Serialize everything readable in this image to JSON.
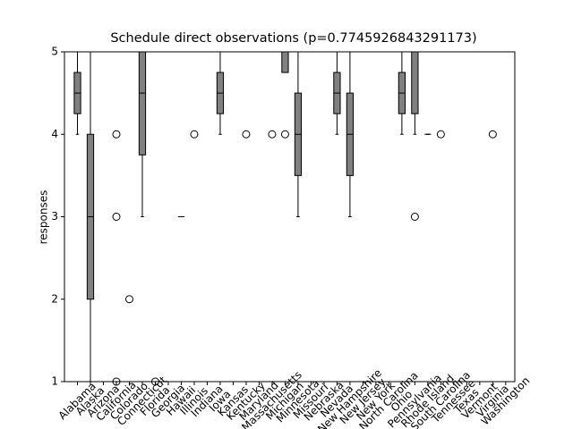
{
  "chart_data": {
    "type": "boxplot",
    "title": "Schedule direct observations (p=0.7745926843291173)",
    "y_label": "responses",
    "ylim": [
      1,
      5
    ],
    "yticks": [
      1,
      2,
      3,
      4,
      5
    ],
    "box_color": "#808080",
    "categories": [
      "Alabama",
      "Alaska",
      "Arizona",
      "California",
      "Colorado",
      "Connecticut",
      "Florida",
      "Georgia",
      "Hawaii",
      "Illinois",
      "Indiana",
      "Iowa",
      "Kansas",
      "Kentucky",
      "Maryland",
      "Massachusetts",
      "Michigan",
      "Minnesota",
      "Missouri",
      "Nebraska",
      "Nevada",
      "New Hampshire",
      "New Jersey",
      "New York",
      "North Carolina",
      "Ohio",
      "Pennsylvania",
      "Rhode Island",
      "South Carolina",
      "Tennessee",
      "Texas",
      "Vermont",
      "Virginia",
      "Washington"
    ],
    "boxes": [
      {
        "whislo": 4,
        "q1": 4.25,
        "med": 4.5,
        "q3": 4.75,
        "whishi": 5,
        "fliers": []
      },
      {
        "whislo": 1,
        "q1": 2,
        "med": 3,
        "q3": 4,
        "whishi": 5,
        "fliers": []
      },
      {
        "whislo": 5,
        "q1": 5,
        "med": 5,
        "q3": 5,
        "whishi": 5,
        "fliers": []
      },
      {
        "whislo": 5,
        "q1": 5,
        "med": 5,
        "q3": 5,
        "whishi": 5,
        "fliers": [
          4,
          3,
          1
        ]
      },
      {
        "whislo": 5,
        "q1": 5,
        "med": 5,
        "q3": 5,
        "whishi": 5,
        "fliers": [
          2
        ]
      },
      {
        "whislo": 3,
        "q1": 3.75,
        "med": 4.5,
        "q3": 5,
        "whishi": 5,
        "fliers": []
      },
      {
        "whislo": 5,
        "q1": 5,
        "med": 5,
        "q3": 5,
        "whishi": 5,
        "fliers": [
          1
        ]
      },
      {
        "whislo": 5,
        "q1": 5,
        "med": 5,
        "q3": 5,
        "whishi": 5,
        "fliers": []
      },
      {
        "whislo": 3,
        "q1": 3,
        "med": 3,
        "q3": 3,
        "whishi": 3,
        "fliers": []
      },
      {
        "whislo": 5,
        "q1": 5,
        "med": 5,
        "q3": 5,
        "whishi": 5,
        "fliers": [
          4
        ]
      },
      {
        "whislo": 5,
        "q1": 5,
        "med": 5,
        "q3": 5,
        "whishi": 5,
        "fliers": []
      },
      {
        "whislo": 4,
        "q1": 4.25,
        "med": 4.5,
        "q3": 4.75,
        "whishi": 5,
        "fliers": []
      },
      {
        "whislo": 5,
        "q1": 5,
        "med": 5,
        "q3": 5,
        "whishi": 5,
        "fliers": []
      },
      {
        "whislo": 5,
        "q1": 5,
        "med": 5,
        "q3": 5,
        "whishi": 5,
        "fliers": [
          4
        ]
      },
      {
        "whislo": 5,
        "q1": 5,
        "med": 5,
        "q3": 5,
        "whishi": 5,
        "fliers": []
      },
      {
        "whislo": 5,
        "q1": 5,
        "med": 5,
        "q3": 5,
        "whishi": 5,
        "fliers": [
          4
        ]
      },
      {
        "whislo": 4.75,
        "q1": 4.75,
        "med": 5,
        "q3": 5,
        "whishi": 5,
        "fliers": [
          4
        ]
      },
      {
        "whislo": 3,
        "q1": 3.5,
        "med": 4,
        "q3": 4.5,
        "whishi": 5,
        "fliers": []
      },
      {
        "whislo": 5,
        "q1": 5,
        "med": 5,
        "q3": 5,
        "whishi": 5,
        "fliers": []
      },
      {
        "whislo": 5,
        "q1": 5,
        "med": 5,
        "q3": 5,
        "whishi": 5,
        "fliers": []
      },
      {
        "whislo": 4,
        "q1": 4.25,
        "med": 4.5,
        "q3": 4.75,
        "whishi": 5,
        "fliers": []
      },
      {
        "whislo": 3,
        "q1": 3.5,
        "med": 4,
        "q3": 4.5,
        "whishi": 5,
        "fliers": []
      },
      {
        "whislo": 5,
        "q1": 5,
        "med": 5,
        "q3": 5,
        "whishi": 5,
        "fliers": []
      },
      {
        "whislo": 5,
        "q1": 5,
        "med": 5,
        "q3": 5,
        "whishi": 5,
        "fliers": []
      },
      {
        "whislo": 5,
        "q1": 5,
        "med": 5,
        "q3": 5,
        "whishi": 5,
        "fliers": []
      },
      {
        "whislo": 4,
        "q1": 4.25,
        "med": 4.5,
        "q3": 4.75,
        "whishi": 5,
        "fliers": []
      },
      {
        "whislo": 4,
        "q1": 4.25,
        "med": 5,
        "q3": 5,
        "whishi": 5,
        "fliers": [
          3
        ]
      },
      {
        "whislo": 4,
        "q1": 4,
        "med": 4,
        "q3": 4,
        "whishi": 4,
        "fliers": []
      },
      {
        "whislo": 5,
        "q1": 5,
        "med": 5,
        "q3": 5,
        "whishi": 5,
        "fliers": [
          4
        ]
      },
      {
        "whislo": 5,
        "q1": 5,
        "med": 5,
        "q3": 5,
        "whishi": 5,
        "fliers": []
      },
      {
        "whislo": 5,
        "q1": 5,
        "med": 5,
        "q3": 5,
        "whishi": 5,
        "fliers": []
      },
      {
        "whislo": 5,
        "q1": 5,
        "med": 5,
        "q3": 5,
        "whishi": 5,
        "fliers": []
      },
      {
        "whislo": 5,
        "q1": 5,
        "med": 5,
        "q3": 5,
        "whishi": 5,
        "fliers": [
          4
        ]
      },
      {
        "whislo": 5,
        "q1": 5,
        "med": 5,
        "q3": 5,
        "whishi": 5,
        "fliers": []
      }
    ]
  }
}
